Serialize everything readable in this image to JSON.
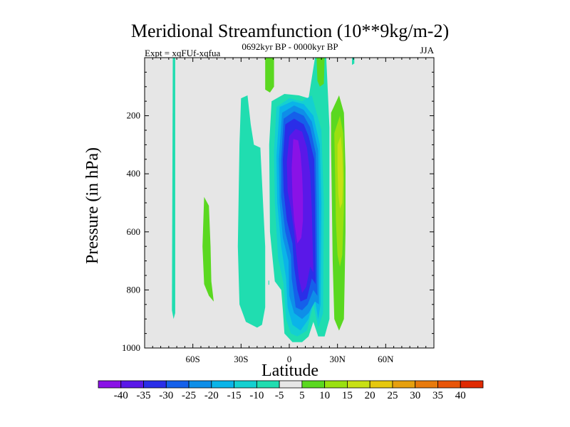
{
  "chart_data": {
    "type": "heatmap",
    "title": "Meridional Streamfunction (10**9kg/m-2)",
    "left_string": "Expt = xqFUf-xqfua",
    "center_string": "0692kyr BP - 0000kyr BP",
    "right_string": "JJA",
    "xlabel": "Latitude",
    "ylabel": "Pressure (in hPa)",
    "xlim": [
      -90,
      90
    ],
    "ylim": [
      1000,
      0
    ],
    "x_ticks": [
      {
        "value": -60,
        "label": "60S"
      },
      {
        "value": -30,
        "label": "30S"
      },
      {
        "value": 0,
        "label": "0"
      },
      {
        "value": 30,
        "label": "30N"
      },
      {
        "value": 60,
        "label": "60N"
      }
    ],
    "y_ticks": [
      {
        "value": 200,
        "label": "200"
      },
      {
        "value": 400,
        "label": "400"
      },
      {
        "value": 600,
        "label": "600"
      },
      {
        "value": 800,
        "label": "800"
      },
      {
        "value": 1000,
        "label": "1000"
      }
    ],
    "background_color": "#e6e6e6",
    "colorbar": {
      "levels": [
        -40,
        -35,
        -30,
        -25,
        -20,
        -15,
        -10,
        -5,
        5,
        10,
        15,
        20,
        25,
        30,
        35,
        40
      ],
      "level_labels": [
        "-40",
        "-35",
        "-30",
        "-25",
        "-20",
        "-15",
        "-10",
        "-5",
        "5",
        "10",
        "15",
        "20",
        "25",
        "30",
        "35",
        "40"
      ],
      "colors": [
        "#8a12e6",
        "#5a18e8",
        "#2a2ee8",
        "#1560ea",
        "#0e8ee8",
        "#0ab4e8",
        "#14d0d0",
        "#20ddb0",
        "#e6e6e6",
        "#5ad820",
        "#9ae010",
        "#c8e014",
        "#e6c80e",
        "#e6a00e",
        "#e87a0c",
        "#e85408",
        "#e02a02"
      ]
    },
    "regions": [
      {
        "color": "#20ddb0",
        "level_range": "-10 to -5",
        "points": [
          [
            -72.5,
            0
          ],
          [
            -71,
            0
          ],
          [
            -71,
            880
          ],
          [
            -72,
            900
          ],
          [
            -73,
            870
          ]
        ]
      },
      {
        "color": "#5ad820",
        "level_range": "5 to 10",
        "points": [
          [
            -53,
            480
          ],
          [
            -50,
            510
          ],
          [
            -49,
            650
          ],
          [
            -48.5,
            770
          ],
          [
            -47,
            840
          ],
          [
            -50,
            820
          ],
          [
            -53,
            780
          ],
          [
            -54,
            650
          ]
        ]
      },
      {
        "color": "#20ddb0",
        "level_range": "-10 to -5",
        "points": [
          [
            -30,
            140
          ],
          [
            -26,
            130
          ],
          [
            -24,
            230
          ],
          [
            -22,
            300
          ],
          [
            -18,
            310
          ],
          [
            -15,
            650
          ],
          [
            -15,
            860
          ],
          [
            -17,
            920
          ],
          [
            -20,
            930
          ],
          [
            -27,
            910
          ],
          [
            -31,
            850
          ],
          [
            -32,
            650
          ],
          [
            -31,
            300
          ]
        ]
      },
      {
        "color": "#5ad820",
        "level_range": "5 to 10",
        "points": [
          [
            -15,
            0
          ],
          [
            -9.5,
            0
          ],
          [
            -9.5,
            100
          ],
          [
            -12,
            120
          ],
          [
            -15,
            110
          ]
        ]
      },
      {
        "color": "#20ddb0",
        "level_range": "-10 to -5",
        "points": [
          [
            -11,
            150
          ],
          [
            -3,
            125
          ],
          [
            6,
            130
          ],
          [
            12,
            140
          ],
          [
            16,
            0
          ],
          [
            23,
            0
          ],
          [
            25,
            240
          ],
          [
            25,
            900
          ],
          [
            22,
            960
          ],
          [
            18,
            960
          ],
          [
            15,
            910
          ],
          [
            12,
            960
          ],
          [
            8,
            980
          ],
          [
            2,
            980
          ],
          [
            -3,
            950
          ],
          [
            -4,
            870
          ],
          [
            -5,
            800
          ],
          [
            -9,
            770
          ],
          [
            -12,
            600
          ],
          [
            -12.5,
            300
          ]
        ]
      },
      {
        "color": "#14d0d0",
        "level_range": "-15 to -10",
        "points": [
          [
            -8,
            170
          ],
          [
            0,
            140
          ],
          [
            8,
            150
          ],
          [
            14,
            130
          ],
          [
            20,
            250
          ],
          [
            21.5,
            500
          ],
          [
            21,
            880
          ],
          [
            18,
            930
          ],
          [
            15,
            850
          ],
          [
            11,
            940
          ],
          [
            5,
            960
          ],
          [
            1,
            950
          ],
          [
            -2,
            900
          ],
          [
            -3.5,
            780
          ],
          [
            -7,
            690
          ],
          [
            -9,
            500
          ],
          [
            -9.5,
            320
          ]
        ]
      },
      {
        "color": "#0ab4e8",
        "level_range": "-20 to -15",
        "points": [
          [
            -6,
            170
          ],
          [
            2,
            150
          ],
          [
            9,
            160
          ],
          [
            15,
            200
          ],
          [
            19,
            300
          ],
          [
            20,
            500
          ],
          [
            19.5,
            850
          ],
          [
            18,
            900
          ],
          [
            15.5,
            820
          ],
          [
            12,
            900
          ],
          [
            7,
            940
          ],
          [
            2,
            920
          ],
          [
            -1,
            860
          ],
          [
            -2,
            760
          ],
          [
            -5,
            650
          ],
          [
            -7.5,
            500
          ],
          [
            -8,
            340
          ]
        ]
      },
      {
        "color": "#0e8ee8",
        "level_range": "-25 to -20",
        "points": [
          [
            -4.5,
            190
          ],
          [
            3,
            165
          ],
          [
            9,
            180
          ],
          [
            14,
            220
          ],
          [
            18,
            320
          ],
          [
            18.5,
            500
          ],
          [
            18.5,
            850
          ],
          [
            16,
            840
          ],
          [
            12,
            880
          ],
          [
            8,
            900
          ],
          [
            3,
            880
          ],
          [
            0,
            820
          ],
          [
            -0.5,
            700
          ],
          [
            -4,
            620
          ],
          [
            -6,
            500
          ],
          [
            -6.5,
            350
          ]
        ]
      },
      {
        "color": "#1560ea",
        "level_range": "-30 to -25",
        "points": [
          [
            -3.5,
            210
          ],
          [
            3,
            185
          ],
          [
            9,
            200
          ],
          [
            13,
            240
          ],
          [
            16.5,
            330
          ],
          [
            17,
            500
          ],
          [
            17.5,
            820
          ],
          [
            15,
            800
          ],
          [
            11.5,
            850
          ],
          [
            8,
            870
          ],
          [
            4,
            860
          ],
          [
            1.5,
            760
          ],
          [
            1,
            680
          ],
          [
            -2.5,
            600
          ],
          [
            -5,
            480
          ],
          [
            -5,
            350
          ]
        ]
      },
      {
        "color": "#2a2ee8",
        "level_range": "-35 to -30",
        "points": [
          [
            -2.5,
            230
          ],
          [
            3,
            210
          ],
          [
            9,
            230
          ],
          [
            12,
            270
          ],
          [
            15.5,
            350
          ],
          [
            16,
            500
          ],
          [
            16.5,
            780
          ],
          [
            14,
            760
          ],
          [
            11,
            830
          ],
          [
            7,
            840
          ],
          [
            5,
            800
          ],
          [
            3,
            720
          ],
          [
            2,
            640
          ],
          [
            -1.5,
            560
          ],
          [
            -3.5,
            460
          ],
          [
            -4,
            350
          ]
        ]
      },
      {
        "color": "#5a18e8",
        "level_range": "-40 to -35",
        "points": [
          [
            0,
            270
          ],
          [
            4,
            245
          ],
          [
            8,
            255
          ],
          [
            11,
            310
          ],
          [
            13,
            400
          ],
          [
            14,
            520
          ],
          [
            15,
            740
          ],
          [
            13,
            720
          ],
          [
            10.5,
            790
          ],
          [
            8,
            810
          ],
          [
            6,
            760
          ],
          [
            4.5,
            680
          ],
          [
            3,
            600
          ],
          [
            1,
            520
          ],
          [
            -1,
            460
          ],
          [
            -1.5,
            360
          ]
        ]
      },
      {
        "color": "#8a12e6",
        "level_range": "< -40",
        "points": [
          [
            2.5,
            280
          ],
          [
            5.5,
            285
          ],
          [
            7,
            330
          ],
          [
            8,
            400
          ],
          [
            8.5,
            480
          ],
          [
            8.5,
            560
          ],
          [
            7.5,
            620
          ],
          [
            5,
            640
          ],
          [
            3,
            560
          ],
          [
            2,
            480
          ],
          [
            1.5,
            380
          ]
        ]
      },
      {
        "color": "#5ad820",
        "level_range": "5 to 10",
        "points": [
          [
            26,
            190
          ],
          [
            31,
            130
          ],
          [
            34,
            190
          ],
          [
            35,
            380
          ],
          [
            35,
            600
          ],
          [
            34.5,
            760
          ],
          [
            34,
            900
          ],
          [
            31,
            940
          ],
          [
            28,
            900
          ],
          [
            27,
            700
          ],
          [
            26.5,
            500
          ],
          [
            26,
            300
          ]
        ]
      },
      {
        "color": "#9ae010",
        "level_range": "10 to 15",
        "points": [
          [
            28,
            260
          ],
          [
            31.5,
            200
          ],
          [
            33.5,
            260
          ],
          [
            34,
            380
          ],
          [
            34,
            520
          ],
          [
            33,
            680
          ],
          [
            31.5,
            720
          ],
          [
            30,
            680
          ],
          [
            29,
            560
          ],
          [
            28.5,
            400
          ]
        ]
      },
      {
        "color": "#c8e014",
        "level_range": "15 to 20",
        "points": [
          [
            30,
            300
          ],
          [
            32,
            270
          ],
          [
            33,
            330
          ],
          [
            33.5,
            420
          ],
          [
            33,
            500
          ],
          [
            31.5,
            520
          ],
          [
            30.5,
            470
          ],
          [
            30,
            380
          ]
        ]
      },
      {
        "color": "#5ad820",
        "level_range": "5 to 10",
        "points": [
          [
            17,
            0
          ],
          [
            22,
            0
          ],
          [
            21.5,
            90
          ],
          [
            19,
            100
          ],
          [
            17.5,
            80
          ]
        ]
      },
      {
        "color": "#20ddb0",
        "level_range": "-10 to -5",
        "points": [
          [
            39,
            0
          ],
          [
            40.5,
            0
          ],
          [
            40.5,
            20
          ],
          [
            39,
            25
          ]
        ]
      },
      {
        "color": "#20ddb0",
        "level_range": "-10 to -5",
        "points": [
          [
            -13,
            768
          ],
          [
            -12.5,
            768
          ],
          [
            -12.5,
            782
          ],
          [
            -13,
            782
          ]
        ]
      }
    ]
  }
}
